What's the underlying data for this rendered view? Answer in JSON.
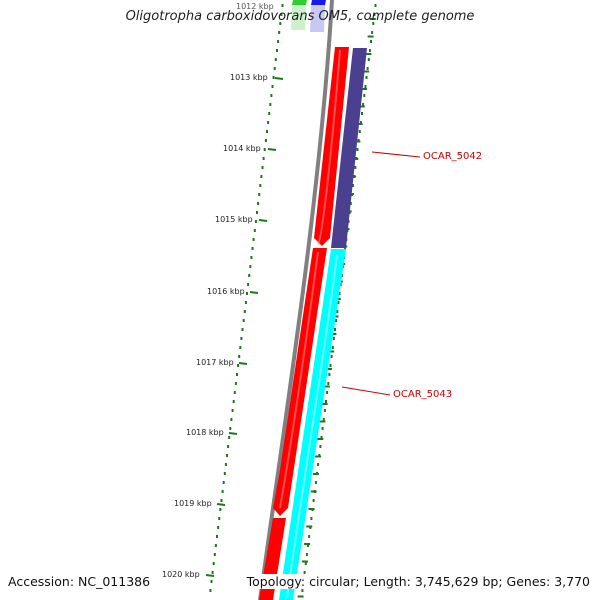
{
  "title": "Oligotropha carboxidovorans OM5, complete genome",
  "footer": {
    "accession": "Accession: NC_011386",
    "summary": "Topology: circular; Length: 3,745,629 bp; Genes: 3,770"
  },
  "ruler": {
    "unit": "kbp",
    "top_partial_label": "1012 kbp",
    "labels": [
      "1013 kbp",
      "1014 kbp",
      "1015 kbp",
      "1016 kbp",
      "1017 kbp",
      "1018 kbp",
      "1019 kbp",
      "1020 kbp"
    ]
  },
  "genes": [
    {
      "name": "OCAR_5042",
      "color": "#ee1c1c"
    },
    {
      "name": "OCAR_5043",
      "color": "#cc0000"
    }
  ],
  "colors": {
    "backbone": "#808080",
    "tick": "#1a7a1a",
    "cds_forward": "#ff0000",
    "cds_reverse_a": "#4b3f8f",
    "cds_reverse_b": "#00ffff",
    "gene_label": "#cc0000",
    "top_green": "#33cc33",
    "top_blue": "#1a1ae6"
  }
}
